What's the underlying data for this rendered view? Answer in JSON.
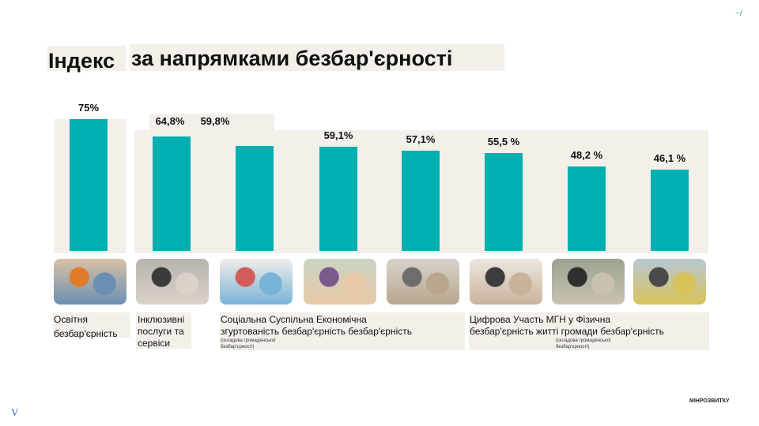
{
  "title": {
    "part1": "Індекс",
    "part2": "за напрямками безбар'єрності"
  },
  "chart_data": {
    "type": "bar",
    "title": "Індекс за напрямками безбар'єрності",
    "categories": [
      "Освітня безбар'єрність",
      "Інклюзивні послуги та сервіси",
      "Соціальна згуртованість",
      "Суспільна безбар'єрність",
      "Економічна безбар'єрність",
      "Цифрова безбар'єрність",
      "Участь МГН у житті громади",
      "Фізична безбар'єрність"
    ],
    "values": [
      75,
      64.8,
      59.8,
      59.1,
      57.1,
      55.5,
      48.2,
      46.1
    ],
    "value_labels": [
      "75%",
      "64,8%",
      "59,8%",
      "59,1%",
      "57,1%",
      "55,5 %",
      "48,2 %",
      "46,1 %"
    ],
    "bar_color": "#00afaf"
  },
  "category_text": {
    "c1_l1": "Освітня",
    "c1_l2": "безбар'єрність",
    "c2_l1": "Інклюзивні",
    "c2_l2": "послуги   та",
    "c2_l3": "сервіси",
    "c345_l1": "Соціальна      Суспільна      Економічна",
    "c345_l2": "згуртованість      безбар'єрність  безбар'єрність",
    "c345_note1": "(складова громадянської",
    "c345_note2": "безбар'єрності)",
    "c678_l1": "Цифрова      Участь  МГН  у  Фізична",
    "c678_l2": "безбар'єрність  житті  громади  безбар'єрність",
    "c678_note1": "(складова громадянської",
    "c678_note2": "безбар'єрності)"
  },
  "photos": [
    {
      "name": "education-photo",
      "colors": [
        "#d9c2a5",
        "#e07b2a",
        "#6b8fb3"
      ]
    },
    {
      "name": "inclusive-services-photo",
      "colors": [
        "#b8b3ad",
        "#3b3b3b",
        "#d8d2c8"
      ]
    },
    {
      "name": "social-cohesion-photo",
      "colors": [
        "#f0eee9",
        "#d25c5c",
        "#7ab3d8"
      ]
    },
    {
      "name": "public-barrier-free-photo",
      "colors": [
        "#c9d4c2",
        "#7a5a8a",
        "#e8c9a8"
      ]
    },
    {
      "name": "economic-photo",
      "colors": [
        "#d7d3cc",
        "#6d6d6d",
        "#b9a68d"
      ]
    },
    {
      "name": "digital-photo",
      "colors": [
        "#ece7e0",
        "#3c3c3c",
        "#c9b29a"
      ]
    },
    {
      "name": "community-participation-photo",
      "colors": [
        "#9aa38f",
        "#2f2f2f",
        "#c9c2b2"
      ]
    },
    {
      "name": "physical-photo",
      "colors": [
        "#b9c7d4",
        "#4a4a4a",
        "#d8c35a"
      ]
    }
  ],
  "branding": {
    "logo_text": "МІНРОЗВИТКУ",
    "corner_icon": "~/",
    "v_mark": "V"
  }
}
